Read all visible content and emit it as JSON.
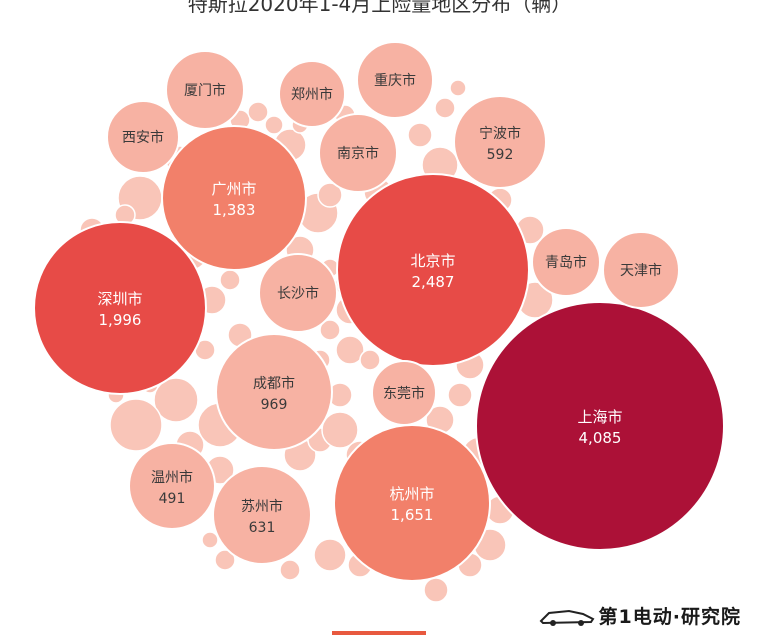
{
  "chart_title": "特斯拉2020年1-4月上险量地区分布（辆）",
  "logo_text": "第1电动·研究院",
  "colors": {
    "small_fill": "#f7b2a3",
    "mid_fill": "#f2806a",
    "large_fill": "#e74b47",
    "max_fill": "#ac1137",
    "filler": "#f9c5b8",
    "label_dark": "#3a3a3a",
    "label_light": "#ffffff"
  },
  "chart_data": {
    "type": "bubble",
    "title": "特斯拉2020年1-4月上险量地区分布（辆）",
    "unit": "辆",
    "points": [
      {
        "label": "上海市",
        "value": 4085
      },
      {
        "label": "北京市",
        "value": 2487
      },
      {
        "label": "深圳市",
        "value": 1996
      },
      {
        "label": "杭州市",
        "value": 1651
      },
      {
        "label": "广州市",
        "value": 1383
      },
      {
        "label": "成都市",
        "value": 969
      },
      {
        "label": "苏州市",
        "value": 631
      },
      {
        "label": "宁波市",
        "value": 592
      },
      {
        "label": "温州市",
        "value": 491
      },
      {
        "label": "长沙市",
        "value": null
      },
      {
        "label": "南京市",
        "value": null
      },
      {
        "label": "东莞市",
        "value": null
      },
      {
        "label": "西安市",
        "value": null
      },
      {
        "label": "厦门市",
        "value": null
      },
      {
        "label": "郑州市",
        "value": null
      },
      {
        "label": "重庆市",
        "value": null
      },
      {
        "label": "青岛市",
        "value": null
      },
      {
        "label": "天津市",
        "value": null
      }
    ]
  }
}
